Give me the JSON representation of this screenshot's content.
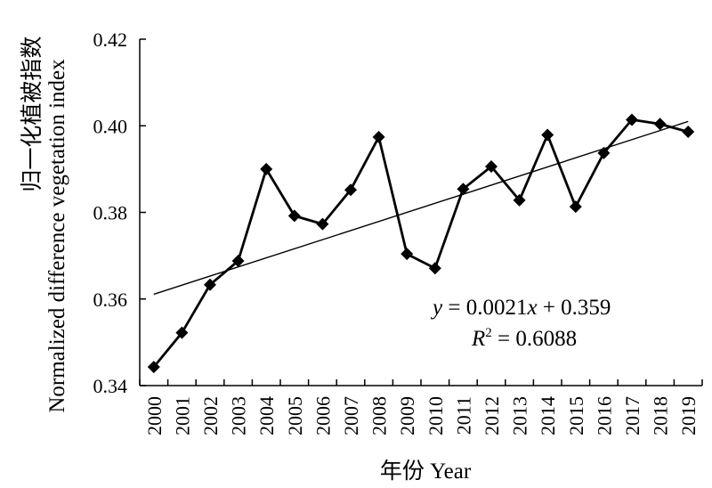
{
  "chart_data": {
    "type": "line",
    "categories": [
      "2000",
      "2001",
      "2002",
      "2003",
      "2004",
      "2005",
      "2006",
      "2007",
      "2008",
      "2009",
      "2010",
      "2011",
      "2012",
      "2013",
      "2014",
      "2015",
      "2016",
      "2017",
      "2018",
      "2019"
    ],
    "series": [
      {
        "values": [
          0.3443,
          0.3522,
          0.3633,
          0.3688,
          0.39,
          0.3792,
          0.3773,
          0.3852,
          0.3974,
          0.3704,
          0.3671,
          0.3854,
          0.3906,
          0.3828,
          0.3979,
          0.3813,
          0.3937,
          0.4014,
          0.4004,
          0.3986
        ]
      }
    ],
    "trendline": {
      "slope": 0.0021,
      "intercept": 0.359,
      "equation_var_y": "y",
      "equation_mid": " = 0.0021",
      "equation_var_x": "x",
      "equation_tail": " + 0.359",
      "r2_var": "R",
      "r2_sup": "2",
      "r2_tail": " = 0.6088"
    },
    "yticks": [
      "0.34",
      "0.36",
      "0.38",
      "0.40",
      "0.42"
    ],
    "ylim": [
      0.34,
      0.42
    ],
    "ylabel_cn": "归一化植被指数",
    "ylabel_en": "Normalized difference vegetation index",
    "xlabel": "年份 Year",
    "grid": false,
    "colors": {
      "line": "#000000",
      "marker": "#000000",
      "axis": "#000000"
    }
  }
}
